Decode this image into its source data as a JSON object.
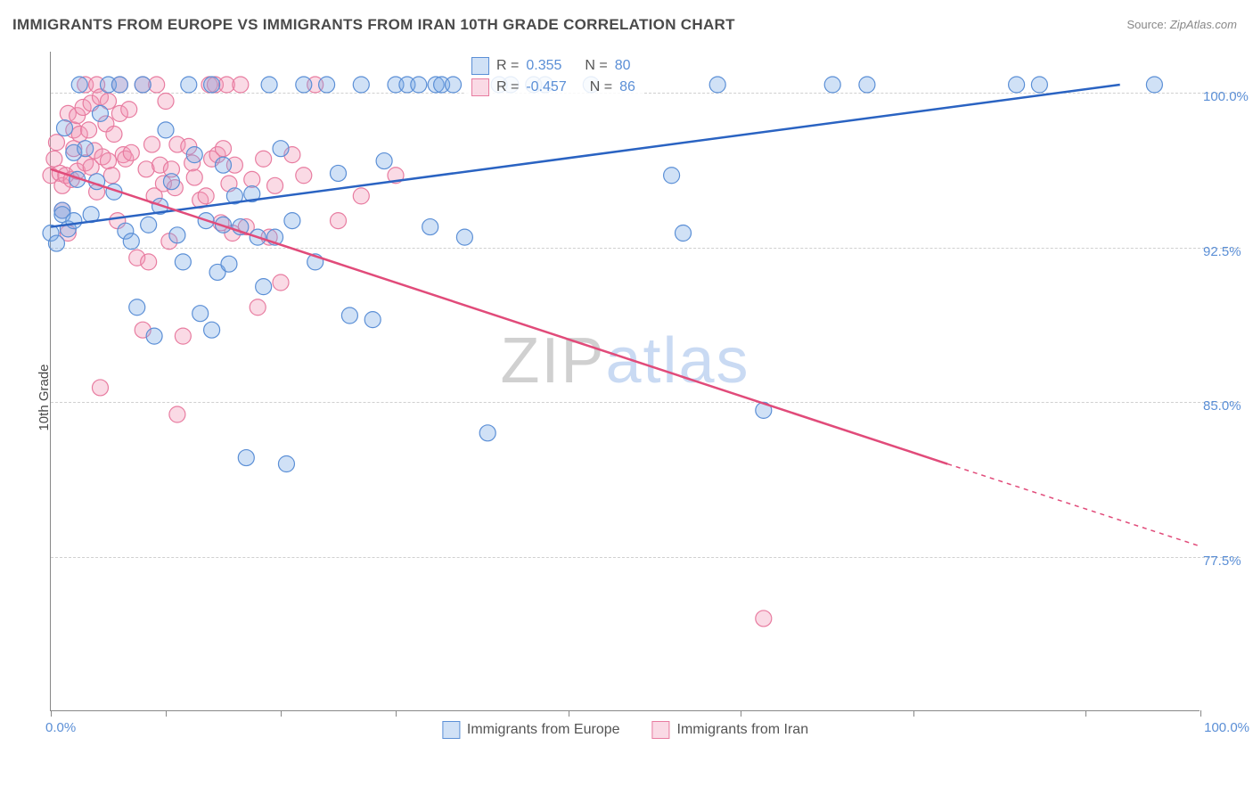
{
  "title": "IMMIGRANTS FROM EUROPE VS IMMIGRANTS FROM IRAN 10TH GRADE CORRELATION CHART",
  "source_prefix": "Source: ",
  "source_name": "ZipAtlas.com",
  "ylabel": "10th Grade",
  "watermark_a": "ZIP",
  "watermark_b": "atlas",
  "chart": {
    "type": "scatter",
    "xlim": [
      0,
      100
    ],
    "ylim": [
      70,
      102
    ],
    "x_ticks": [
      0,
      10,
      20,
      30,
      45,
      60,
      75,
      90,
      100
    ],
    "x_tick_labels": {
      "0": "0.0%",
      "100": "100.0%"
    },
    "y_gridlines": [
      77.5,
      85.0,
      92.5,
      100.0
    ],
    "y_tick_labels": {
      "77.5": "77.5%",
      "85.0": "85.0%",
      "92.5": "92.5%",
      "100.0": "100.0%"
    },
    "background_color": "#ffffff",
    "grid_color": "#d0d0d0",
    "axis_color": "#888888",
    "label_color": "#5b8fd6",
    "title_fontsize": 17,
    "label_fontsize": 15
  },
  "series": {
    "europe": {
      "name": "Immigrants from Europe",
      "color_stroke": "#5b8fd6",
      "color_fill": "rgba(120,170,230,0.35)",
      "line_color": "#2a63c2",
      "R_label": "R =",
      "R": "0.355",
      "N_label": "N =",
      "N": "80",
      "trend": {
        "x1": 0,
        "y1": 93.5,
        "x2": 93,
        "y2": 100.4
      },
      "points": [
        [
          0,
          93.2
        ],
        [
          0.5,
          92.7
        ],
        [
          1,
          94.3
        ],
        [
          1,
          94.1
        ],
        [
          1.2,
          98.3
        ],
        [
          1.5,
          93.4
        ],
        [
          2,
          97.1
        ],
        [
          2,
          93.8
        ],
        [
          2.3,
          95.8
        ],
        [
          2.5,
          100.4
        ],
        [
          3,
          97.3
        ],
        [
          3.5,
          94.1
        ],
        [
          4,
          95.7
        ],
        [
          4.3,
          99.0
        ],
        [
          5,
          100.4
        ],
        [
          5.5,
          95.2
        ],
        [
          6,
          100.4
        ],
        [
          6.5,
          93.3
        ],
        [
          7,
          92.8
        ],
        [
          7.5,
          89.6
        ],
        [
          8,
          100.4
        ],
        [
          8.5,
          93.6
        ],
        [
          9,
          88.2
        ],
        [
          9.5,
          94.5
        ],
        [
          10,
          98.2
        ],
        [
          10.5,
          95.7
        ],
        [
          11,
          93.1
        ],
        [
          11.5,
          91.8
        ],
        [
          12,
          100.4
        ],
        [
          12.5,
          97.0
        ],
        [
          13,
          89.3
        ],
        [
          13.5,
          93.8
        ],
        [
          14,
          88.5
        ],
        [
          14,
          100.4
        ],
        [
          14.5,
          91.3
        ],
        [
          15,
          96.5
        ],
        [
          15,
          93.6
        ],
        [
          15.5,
          91.7
        ],
        [
          16,
          95.0
        ],
        [
          16.5,
          93.5
        ],
        [
          17,
          82.3
        ],
        [
          17.5,
          95.1
        ],
        [
          18,
          93.0
        ],
        [
          18.5,
          90.6
        ],
        [
          19,
          100.4
        ],
        [
          19.5,
          93.0
        ],
        [
          20,
          97.3
        ],
        [
          20.5,
          82.0
        ],
        [
          21,
          93.8
        ],
        [
          22,
          100.4
        ],
        [
          23,
          91.8
        ],
        [
          24,
          100.4
        ],
        [
          25,
          96.1
        ],
        [
          26,
          89.2
        ],
        [
          27,
          100.4
        ],
        [
          28,
          89.0
        ],
        [
          29,
          96.7
        ],
        [
          30,
          100.4
        ],
        [
          31,
          100.4
        ],
        [
          32,
          100.4
        ],
        [
          33,
          93.5
        ],
        [
          33.5,
          100.4
        ],
        [
          34,
          100.4
        ],
        [
          35,
          100.4
        ],
        [
          36,
          93.0
        ],
        [
          38,
          83.5
        ],
        [
          39,
          100.4
        ],
        [
          40,
          100.4
        ],
        [
          42,
          100.4
        ],
        [
          43,
          100.4
        ],
        [
          47,
          100.4
        ],
        [
          54,
          96.0
        ],
        [
          55,
          93.2
        ],
        [
          58,
          100.4
        ],
        [
          62,
          84.6
        ],
        [
          68,
          100.4
        ],
        [
          71,
          100.4
        ],
        [
          84,
          100.4
        ],
        [
          86,
          100.4
        ],
        [
          96,
          100.4
        ]
      ]
    },
    "iran": {
      "name": "Immigrants from Iran",
      "color_stroke": "#e87ca0",
      "color_fill": "rgba(240,150,180,0.35)",
      "line_color": "#e14b7a",
      "R_label": "R =",
      "R": "-0.457",
      "N_label": "N =",
      "N": "86",
      "trend_solid": {
        "x1": 0,
        "y1": 96.3,
        "x2": 78,
        "y2": 82.0
      },
      "trend_dashed": {
        "x1": 78,
        "y1": 82.0,
        "x2": 100,
        "y2": 78.0
      },
      "points": [
        [
          0,
          96.0
        ],
        [
          0.3,
          96.8
        ],
        [
          0.5,
          97.6
        ],
        [
          0.8,
          96.1
        ],
        [
          1,
          95.5
        ],
        [
          1,
          94.3
        ],
        [
          1.3,
          96.0
        ],
        [
          1.5,
          99.0
        ],
        [
          1.5,
          93.2
        ],
        [
          1.8,
          95.8
        ],
        [
          2,
          98.2
        ],
        [
          2,
          97.3
        ],
        [
          2.3,
          98.9
        ],
        [
          2.3,
          96.2
        ],
        [
          2.5,
          98.0
        ],
        [
          2.8,
          99.3
        ],
        [
          3,
          100.4
        ],
        [
          3,
          96.6
        ],
        [
          3.3,
          98.2
        ],
        [
          3.5,
          99.5
        ],
        [
          3.5,
          96.4
        ],
        [
          3.8,
          97.2
        ],
        [
          4,
          100.4
        ],
        [
          4,
          95.2
        ],
        [
          4.3,
          99.8
        ],
        [
          4.3,
          85.7
        ],
        [
          4.5,
          96.9
        ],
        [
          4.8,
          98.5
        ],
        [
          5,
          99.6
        ],
        [
          5,
          96.7
        ],
        [
          5.3,
          96.0
        ],
        [
          5.5,
          98.0
        ],
        [
          5.8,
          93.8
        ],
        [
          6,
          99.0
        ],
        [
          6,
          100.4
        ],
        [
          6.3,
          97.0
        ],
        [
          6.5,
          96.8
        ],
        [
          6.8,
          99.2
        ],
        [
          7,
          97.1
        ],
        [
          7.5,
          92.0
        ],
        [
          8,
          100.4
        ],
        [
          8,
          88.5
        ],
        [
          8.3,
          96.3
        ],
        [
          8.5,
          91.8
        ],
        [
          8.8,
          97.5
        ],
        [
          9,
          95.0
        ],
        [
          9.2,
          100.4
        ],
        [
          9.5,
          96.5
        ],
        [
          9.8,
          95.6
        ],
        [
          10,
          99.6
        ],
        [
          10.3,
          92.8
        ],
        [
          10.5,
          96.3
        ],
        [
          10.8,
          95.4
        ],
        [
          11,
          97.5
        ],
        [
          11,
          84.4
        ],
        [
          11.5,
          88.2
        ],
        [
          12,
          97.4
        ],
        [
          12.3,
          96.6
        ],
        [
          12.5,
          95.9
        ],
        [
          13,
          94.8
        ],
        [
          13.5,
          95.0
        ],
        [
          13.8,
          100.4
        ],
        [
          14,
          96.8
        ],
        [
          14.3,
          100.4
        ],
        [
          14.5,
          97.0
        ],
        [
          14.8,
          93.7
        ],
        [
          15,
          97.3
        ],
        [
          15.3,
          100.4
        ],
        [
          15.5,
          95.6
        ],
        [
          15.8,
          93.2
        ],
        [
          16,
          96.5
        ],
        [
          16.5,
          100.4
        ],
        [
          17,
          93.5
        ],
        [
          17.5,
          95.8
        ],
        [
          18,
          89.6
        ],
        [
          18.5,
          96.8
        ],
        [
          19,
          93.0
        ],
        [
          19.5,
          95.5
        ],
        [
          20,
          90.8
        ],
        [
          21,
          97.0
        ],
        [
          22,
          96.0
        ],
        [
          23,
          100.4
        ],
        [
          25,
          93.8
        ],
        [
          27,
          95.0
        ],
        [
          30,
          96.0
        ],
        [
          62,
          74.5
        ]
      ]
    }
  }
}
